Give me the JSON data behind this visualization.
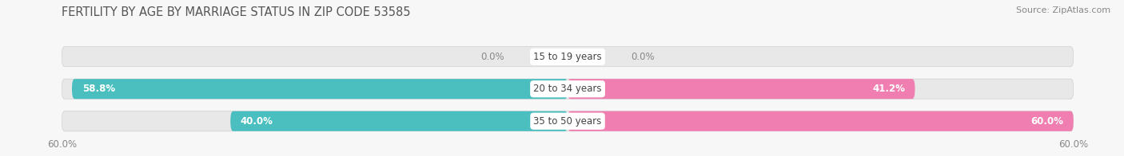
{
  "title": "FERTILITY BY AGE BY MARRIAGE STATUS IN ZIP CODE 53585",
  "source": "Source: ZipAtlas.com",
  "categories": [
    "15 to 19 years",
    "20 to 34 years",
    "35 to 50 years"
  ],
  "married_values": [
    0.0,
    58.8,
    40.0
  ],
  "unmarried_values": [
    0.0,
    41.2,
    60.0
  ],
  "married_color": "#4BBFBF",
  "unmarried_color": "#F07EB0",
  "bar_bg_color": "#E8E8E8",
  "bar_bg_border_color": "#D0D0D0",
  "xlim": 60.0,
  "axis_label_left": "60.0%",
  "axis_label_right": "60.0%",
  "title_fontsize": 10.5,
  "source_fontsize": 8,
  "label_fontsize": 8.5,
  "category_fontsize": 8.5,
  "legend_fontsize": 9,
  "background_color": "#F7F7F7"
}
